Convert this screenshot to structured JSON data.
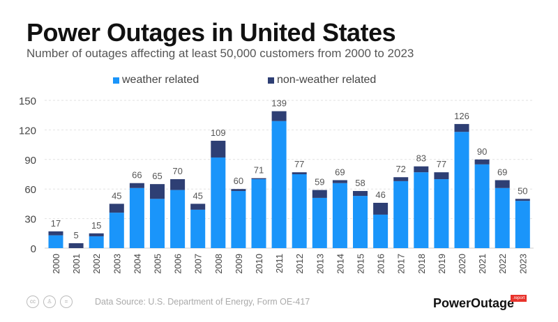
{
  "title": "Power Outages in United States",
  "subtitle": "Number of outages affecting at least 50,000 customers from 2000 to 2023",
  "footer": {
    "source": "Data Source: U.S. Department of Energy, Form OE-417",
    "brand": "PowerOutage",
    "brand_badge": ".report",
    "license_icons": [
      "cc-icon",
      "by-icon",
      "nd-icon"
    ]
  },
  "chart_data": {
    "type": "bar",
    "stacked": true,
    "title": "Power Outages in United States",
    "categories": [
      "2000",
      "2001",
      "2002",
      "2003",
      "2004",
      "2005",
      "2006",
      "2007",
      "2008",
      "2009",
      "2010",
      "2011",
      "2012",
      "2013",
      "2014",
      "2015",
      "2016",
      "2017",
      "2018",
      "2019",
      "2020",
      "2021",
      "2022",
      "2023"
    ],
    "series": [
      {
        "name": "weather related",
        "color": "#1a95fa",
        "values": [
          13,
          0,
          12,
          36,
          61,
          50,
          59,
          39,
          92,
          58,
          70,
          129,
          75,
          51,
          66,
          53,
          34,
          68,
          77,
          70,
          118,
          85,
          61,
          48
        ]
      },
      {
        "name": "non-weather related",
        "color": "#2e3f74",
        "values": [
          4,
          5,
          3,
          9,
          5,
          15,
          11,
          6,
          17,
          2,
          1,
          10,
          2,
          8,
          3,
          5,
          12,
          4,
          6,
          7,
          8,
          5,
          8,
          2
        ]
      }
    ],
    "totals": [
      17,
      5,
      15,
      45,
      66,
      65,
      70,
      45,
      109,
      60,
      71,
      139,
      77,
      59,
      69,
      58,
      46,
      72,
      83,
      77,
      126,
      90,
      69,
      50
    ],
    "yticks": [
      0,
      30,
      60,
      90,
      120,
      150
    ],
    "ylim": [
      0,
      150
    ],
    "grid": true,
    "legend": "top"
  }
}
